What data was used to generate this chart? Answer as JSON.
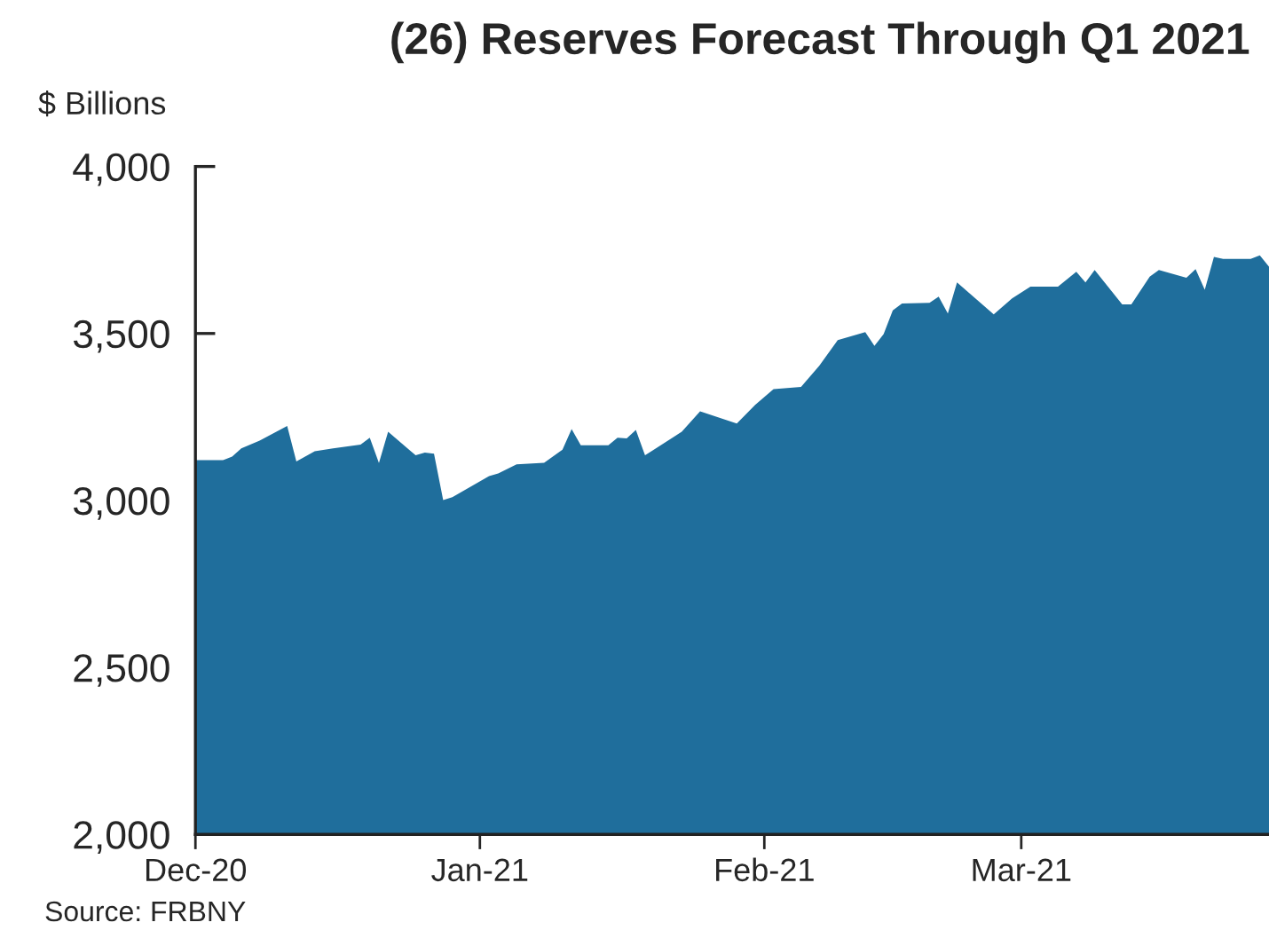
{
  "chart_data": {
    "type": "area",
    "title": "(26) Reserves Forecast Through Q1 2021",
    "ylabel": "$ Billions",
    "annotations": [
      "Source: FRBNY"
    ],
    "x": [
      "2020-12-01",
      "2020-12-04",
      "2020-12-05",
      "2020-12-06",
      "2020-12-08",
      "2020-12-11",
      "2020-12-12",
      "2020-12-14",
      "2020-12-16",
      "2020-12-19",
      "2020-12-20",
      "2020-12-21",
      "2020-12-22",
      "2020-12-25",
      "2020-12-26",
      "2020-12-27",
      "2020-12-28",
      "2020-12-29",
      "2021-01-02",
      "2021-01-03",
      "2021-01-05",
      "2021-01-08",
      "2021-01-10",
      "2021-01-11",
      "2021-01-12",
      "2021-01-15",
      "2021-01-16",
      "2021-01-17",
      "2021-01-18",
      "2021-01-19",
      "2021-01-23",
      "2021-01-25",
      "2021-01-29",
      "2021-01-31",
      "2021-02-02",
      "2021-02-05",
      "2021-02-07",
      "2021-02-09",
      "2021-02-12",
      "2021-02-13",
      "2021-02-14",
      "2021-02-15",
      "2021-02-16",
      "2021-02-19",
      "2021-02-20",
      "2021-02-21",
      "2021-02-22",
      "2021-02-26",
      "2021-02-28",
      "2021-03-02",
      "2021-03-05",
      "2021-03-07",
      "2021-03-08",
      "2021-03-09",
      "2021-03-12",
      "2021-03-13",
      "2021-03-15",
      "2021-03-16",
      "2021-03-19",
      "2021-03-20",
      "2021-03-21",
      "2021-03-22",
      "2021-03-23",
      "2021-03-26",
      "2021-03-27",
      "2021-03-28"
    ],
    "series": [
      {
        "color": "#1f6e9c",
        "values": [
          3121,
          3121,
          3131,
          3156,
          3179,
          3223,
          3117,
          3147,
          3156,
          3167,
          3188,
          3112,
          3206,
          3135,
          3143,
          3140,
          3001,
          3010,
          3073,
          3081,
          3108,
          3113,
          3152,
          3214,
          3165,
          3165,
          3188,
          3186,
          3211,
          3135,
          3206,
          3267,
          3230,
          3286,
          3333,
          3340,
          3404,
          3480,
          3504,
          3463,
          3498,
          3569,
          3590,
          3592,
          3610,
          3560,
          3653,
          3557,
          3605,
          3640,
          3640,
          3685,
          3653,
          3690,
          3587,
          3587,
          3670,
          3690,
          3667,
          3693,
          3631,
          3729,
          3723,
          3723,
          3734,
          3700
        ]
      }
    ],
    "xlim": [
      "2020-12-01",
      "2021-03-28"
    ],
    "xticks": [
      {
        "value": "2020-12-01",
        "label": "Dec-20"
      },
      {
        "value": "2021-01-01",
        "label": "Jan-21"
      },
      {
        "value": "2021-02-01",
        "label": "Feb-21"
      },
      {
        "value": "2021-03-01",
        "label": "Mar-21"
      }
    ],
    "ylim": [
      2000,
      4000
    ],
    "yticks": [
      {
        "value": 2000,
        "label": "2,000"
      },
      {
        "value": 2500,
        "label": "2,500"
      },
      {
        "value": 3000,
        "label": "3,000"
      },
      {
        "value": 3500,
        "label": "3,500"
      },
      {
        "value": 4000,
        "label": "4,000"
      }
    ],
    "grid": false,
    "legend": false
  }
}
